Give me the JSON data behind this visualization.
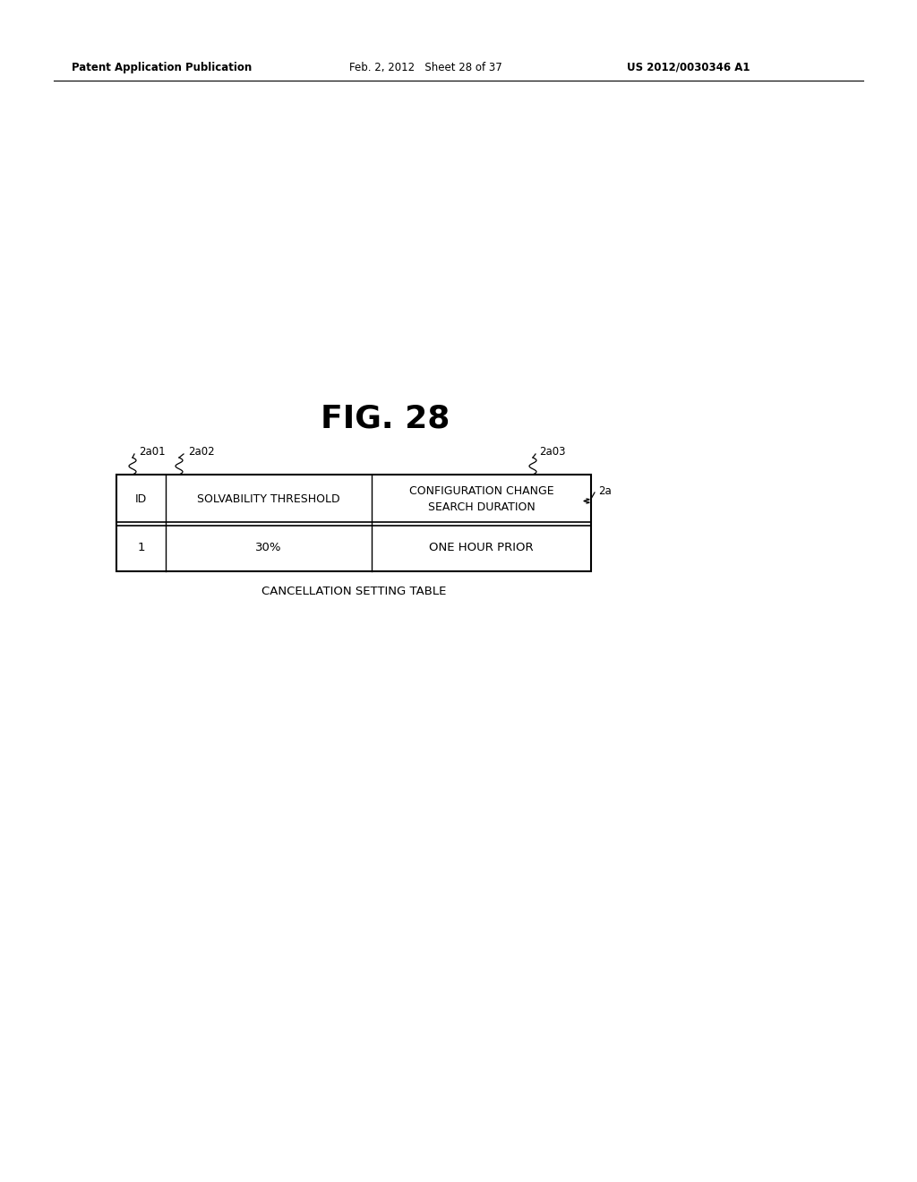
{
  "background_color": "#ffffff",
  "patent_left": "Patent Application Publication",
  "patent_mid": "Feb. 2, 2012   Sheet 28 of 37",
  "patent_right": "US 2012/0030346 A1",
  "fig_label": "FIG. 28",
  "header_row": [
    "ID",
    "SOLVABILITY THRESHOLD",
    "CONFIGURATION CHANGE\nSEARCH DURATION"
  ],
  "data_row": [
    "1",
    "30%",
    "ONE HOUR PRIOR"
  ],
  "caption": "CANCELLATION SETTING TABLE",
  "label_2a01": "2a01",
  "label_2a02": "2a02",
  "label_2a03": "2a03",
  "label_2a": "2a",
  "line_color": "#000000",
  "text_color": "#000000"
}
